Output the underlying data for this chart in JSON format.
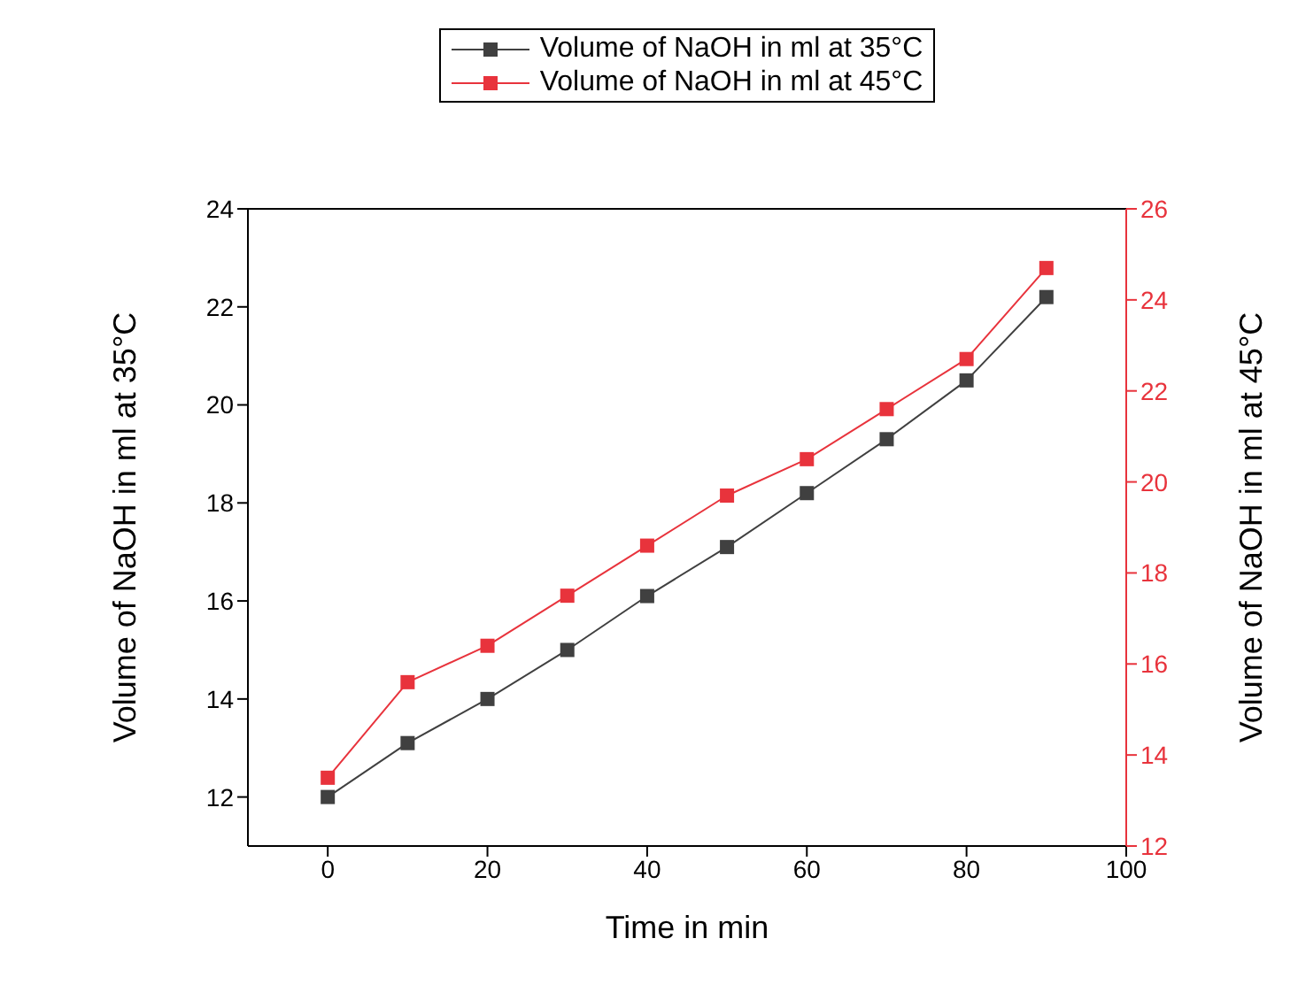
{
  "chart_data": {
    "type": "line",
    "xlabel": "Time in min",
    "ylabel": "Volume of NaOH in ml at 35°C",
    "y2label": "Volume of NaOH in ml at 45°C",
    "x": [
      0,
      10,
      20,
      30,
      40,
      50,
      60,
      70,
      80,
      90
    ],
    "series": [
      {
        "name": "Volume of NaOH in ml at 35°C",
        "color": "#404040",
        "values": [
          12.0,
          13.1,
          14.0,
          15.0,
          16.1,
          17.1,
          18.2,
          19.3,
          20.5,
          22.2
        ]
      },
      {
        "name": "Volume of NaOH in ml at 45°C",
        "color": "#e8333c",
        "axis": "y2",
        "values": [
          13.5,
          15.6,
          16.4,
          17.5,
          18.6,
          19.7,
          20.5,
          21.6,
          22.7,
          24.7
        ]
      }
    ],
    "xlim": [
      -10,
      100
    ],
    "xticks": [
      0,
      20,
      40,
      60,
      80,
      100
    ],
    "ylim": [
      11,
      24
    ],
    "yticks": [
      12,
      14,
      16,
      18,
      20,
      22,
      24
    ],
    "y2lim": [
      12,
      26
    ],
    "y2ticks": [
      12,
      14,
      16,
      18,
      20,
      22,
      24,
      26
    ],
    "marker": "square",
    "line_style": "solid",
    "legend": "top",
    "grid": false
  }
}
